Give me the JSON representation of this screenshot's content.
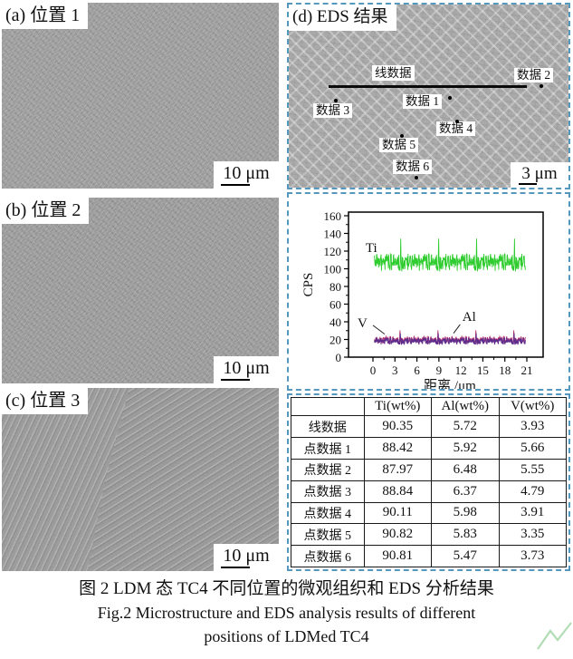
{
  "panels": {
    "a": {
      "title": "(a) 位置 1",
      "scalebar": "10 μm"
    },
    "b": {
      "title": "(b) 位置 2",
      "scalebar": "10 μm"
    },
    "c": {
      "title": "(c) 位置 3",
      "scalebar": "10 μm"
    },
    "d": {
      "title": "(d) EDS 结果",
      "scalebar": "3 μm",
      "line_label": "线数据",
      "points": [
        {
          "label": "数据 1"
        },
        {
          "label": "数据 2"
        },
        {
          "label": "数据 3"
        },
        {
          "label": "数据 4"
        },
        {
          "label": "数据 5"
        },
        {
          "label": "数据 6"
        }
      ]
    }
  },
  "chart_data": {
    "type": "line",
    "title": "",
    "xlabel": "距离 /μm",
    "ylabel": "CPS",
    "xlim": [
      0,
      21
    ],
    "ylim": [
      0,
      160
    ],
    "xticks": [
      0,
      3,
      6,
      9,
      12,
      15,
      18,
      21
    ],
    "yticks": [
      0,
      20,
      40,
      60,
      80,
      100,
      120,
      140,
      160
    ],
    "grid": false,
    "legend_position": "inline-annotations",
    "series": [
      {
        "name": "Ti",
        "color": "#2ecc2e",
        "mean": 107,
        "noise": 10,
        "spike": 22,
        "ymin": 81,
        "ymax": 146
      },
      {
        "name": "Al",
        "color": "#b5306a",
        "mean": 19,
        "noise": 4.5,
        "spike": 9,
        "ymin": 8,
        "ymax": 35
      },
      {
        "name": "V",
        "color": "#5b2d8e",
        "mean": 18,
        "noise": 4,
        "spike": 7,
        "ymin": 8,
        "ymax": 32
      }
    ],
    "annotations": [
      {
        "text": "Ti",
        "x": -1.0,
        "y": 119
      },
      {
        "text": "V",
        "x": -2.1,
        "y": 34,
        "from": [
          0.0,
          36
        ],
        "line_to": [
          1.6,
          26
        ]
      },
      {
        "text": "Al",
        "x": 12.2,
        "y": 41,
        "from": [
          11.9,
          37
        ],
        "line_to": [
          11.0,
          27
        ]
      }
    ]
  },
  "table": {
    "headers": [
      "",
      "Ti(wt%)",
      "Al(wt%)",
      "V(wt%)"
    ],
    "rows": [
      {
        "label": "线数据",
        "ti": "90.35",
        "al": "5.72",
        "v": "3.93"
      },
      {
        "label": "点数据 1",
        "ti": "88.42",
        "al": "5.92",
        "v": "5.66"
      },
      {
        "label": "点数据 2",
        "ti": "87.97",
        "al": "6.48",
        "v": "5.55"
      },
      {
        "label": "点数据 3",
        "ti": "88.84",
        "al": "6.37",
        "v": "4.79"
      },
      {
        "label": "点数据 4",
        "ti": "90.11",
        "al": "5.98",
        "v": "3.91"
      },
      {
        "label": "点数据 5",
        "ti": "90.82",
        "al": "5.83",
        "v": "3.35"
      },
      {
        "label": "点数据 6",
        "ti": "90.81",
        "al": "5.47",
        "v": "3.73"
      }
    ]
  },
  "caption": {
    "zh": "图 2  LDM 态 TC4 不同位置的微观组织和 EDS 分析结果",
    "en1": "Fig.2  Microstructure and EDS analysis results of different",
    "en2": "positions of LDMed TC4"
  },
  "colors": {
    "dashed_border": "#5598be",
    "ti_green": "#2ecc2e",
    "al_magenta": "#b5306a",
    "v_purple": "#5b2d8e",
    "scan_line": "#0a0a0a",
    "watermark_green": "#a5d6a7"
  }
}
